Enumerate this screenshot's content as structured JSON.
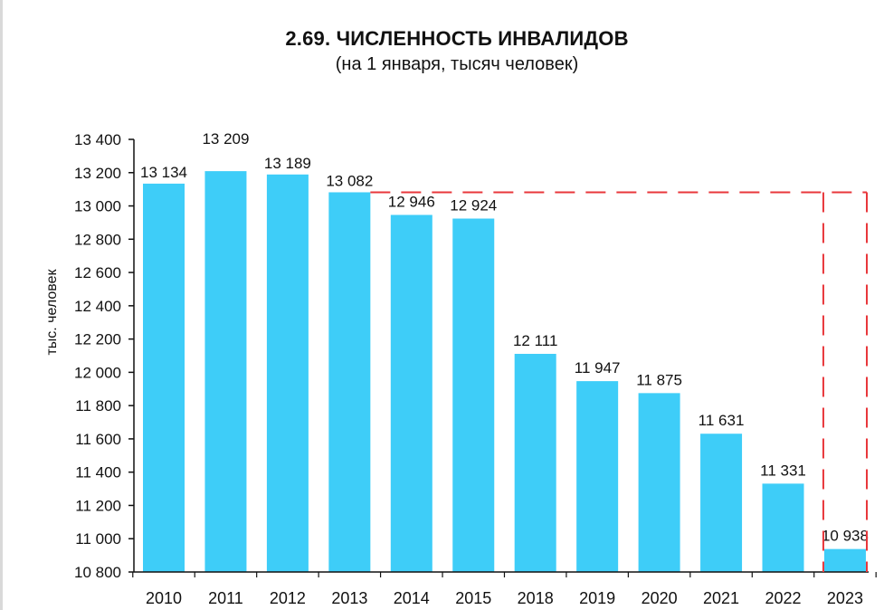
{
  "title": "2.69. ЧИСЛЕННОСТЬ ИНВАЛИДОВ",
  "subtitle": "(на 1 января, тысяч человек)",
  "colors": {
    "bar": "#3ecdf8",
    "highlight": "#e8373b",
    "axis": "#111111"
  },
  "chart_data": {
    "type": "bar",
    "title": "2.69. ЧИСЛЕННОСТЬ ИНВАЛИДОВ",
    "subtitle": "(на 1 января, тысяч человек)",
    "ylabel": "тыс. человек",
    "xlabel": "",
    "ylim": [
      10800,
      13400
    ],
    "yticks": [
      10800,
      11000,
      11200,
      11400,
      11600,
      11800,
      12000,
      12200,
      12400,
      12600,
      12800,
      13000,
      13200,
      13400
    ],
    "ytick_labels": [
      "10 800",
      "11 000",
      "11 200",
      "11 400",
      "11 600",
      "11 800",
      "12 000",
      "12 200",
      "12 400",
      "12 600",
      "12 800",
      "13 000",
      "13 200",
      "13 400"
    ],
    "categories": [
      "2010",
      "2011",
      "2012",
      "2013",
      "2014",
      "2015",
      "2018",
      "2019",
      "2020",
      "2021",
      "2022",
      "2023"
    ],
    "values": [
      13134,
      13209,
      13189,
      13082,
      12946,
      12924,
      12111,
      11947,
      11875,
      11631,
      11331,
      10938
    ],
    "value_labels": [
      "13 134",
      "13 209",
      "13 189",
      "13 082",
      "12 946",
      "12 924",
      "12 111",
      "11 947",
      "11 875",
      "11 631",
      "11 331",
      "10 938"
    ],
    "grid": false,
    "annotations": {
      "dashed_reference_level": 13082,
      "dashed_from_category": "2013",
      "dashed_to_category": "2023",
      "color": "#e8373b"
    }
  }
}
